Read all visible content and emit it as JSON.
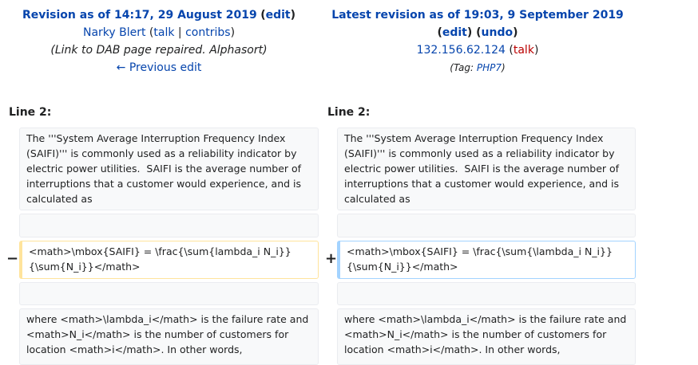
{
  "left_header": {
    "title": "Revision as of 14:17, 29 August 2019",
    "edit_link": "edit",
    "user": "Narky Blert",
    "talk": "talk",
    "contribs": "contribs",
    "summary": "(Link to DAB page repaired. Alphasort)",
    "previous_edit": "← Previous edit"
  },
  "right_header": {
    "title": "Latest revision as of 19:03, 9 September 2019",
    "edit_link": "edit",
    "undo_link": "undo",
    "ip": "132.156.62.124",
    "talk": "talk",
    "tag_label": "Tag:",
    "tag": "PHP7"
  },
  "line_label_left": "Line 2:",
  "line_label_right": "Line 2:",
  "rows": {
    "context1": "The '''System Average Interruption Frequency Index (SAIFI)''' is commonly used as a reliability indicator by electric power utilities.  SAIFI is the average number of interruptions that a customer would experience, and is calculated as",
    "deleted": "<math>\\mbox{SAIFI} = \\frac{\\sum{lambda_i N_i}}{\\sum{N_i}}</math>",
    "added": "<math>\\mbox{SAIFI} = \\frac{\\sum{\\lambda_i N_i}}{\\sum{N_i}}</math>",
    "context2": "where <math>\\lambda_i</math> is the failure rate and <math>N_i</math> is the number of customers for location <math>i</math>. In other words,"
  },
  "markers": {
    "minus": "−",
    "plus": "+"
  }
}
